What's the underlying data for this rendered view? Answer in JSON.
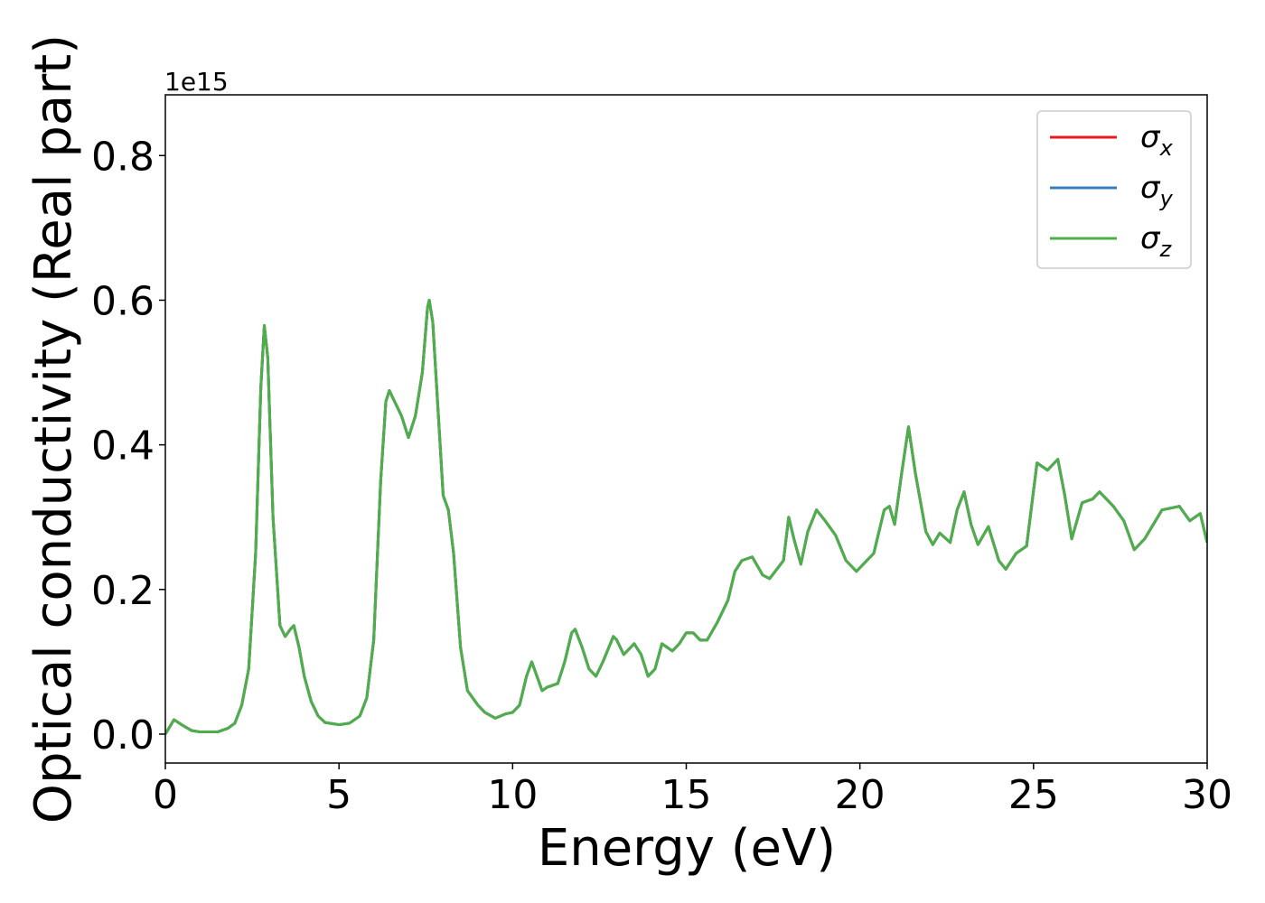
{
  "chart_data": {
    "type": "line",
    "xlabel": "Energy (eV)",
    "ylabel": "Optical conductivity (Real part)",
    "y_offset_label": "1e15",
    "x": [
      0,
      0.25,
      0.5,
      0.75,
      1,
      1.5,
      1.8,
      2.0,
      2.2,
      2.4,
      2.6,
      2.75,
      2.85,
      2.95,
      3.1,
      3.3,
      3.45,
      3.6,
      3.7,
      3.85,
      4.0,
      4.2,
      4.4,
      4.6,
      5.0,
      5.3,
      5.6,
      5.8,
      6.0,
      6.2,
      6.35,
      6.45,
      6.6,
      6.8,
      7.0,
      7.2,
      7.4,
      7.55,
      7.6,
      7.7,
      7.85,
      8.0,
      8.15,
      8.3,
      8.5,
      8.7,
      9.0,
      9.2,
      9.5,
      9.8,
      10.0,
      10.2,
      10.4,
      10.55,
      10.7,
      10.85,
      11.0,
      11.3,
      11.5,
      11.7,
      11.8,
      12.0,
      12.2,
      12.4,
      12.6,
      12.9,
      13.0,
      13.2,
      13.5,
      13.7,
      13.9,
      14.1,
      14.3,
      14.6,
      14.8,
      15.0,
      15.2,
      15.4,
      15.6,
      15.9,
      16.2,
      16.4,
      16.6,
      16.9,
      17.2,
      17.4,
      17.8,
      17.95,
      18.1,
      18.3,
      18.5,
      18.75,
      19.0,
      19.3,
      19.6,
      19.9,
      20.2,
      20.4,
      20.7,
      20.85,
      21.0,
      21.2,
      21.4,
      21.6,
      21.9,
      22.1,
      22.3,
      22.6,
      22.8,
      23.0,
      23.2,
      23.4,
      23.7,
      24.0,
      24.2,
      24.5,
      24.8,
      25.1,
      25.4,
      25.7,
      25.9,
      26.1,
      26.4,
      26.7,
      26.9,
      27.3,
      27.6,
      27.9,
      28.2,
      28.7,
      29.2,
      29.5,
      29.8,
      30.0
    ],
    "series": [
      {
        "name": "σx",
        "color": "#e41a1c",
        "values": [
          0,
          0.02,
          0.012,
          0.005,
          0.003,
          0.003,
          0.008,
          0.015,
          0.04,
          0.09,
          0.25,
          0.48,
          0.565,
          0.52,
          0.3,
          0.15,
          0.135,
          0.145,
          0.15,
          0.12,
          0.08,
          0.045,
          0.025,
          0.016,
          0.013,
          0.015,
          0.025,
          0.05,
          0.13,
          0.35,
          0.46,
          0.475,
          0.46,
          0.44,
          0.41,
          0.44,
          0.5,
          0.59,
          0.6,
          0.57,
          0.45,
          0.33,
          0.31,
          0.25,
          0.12,
          0.06,
          0.04,
          0.03,
          0.022,
          0.028,
          0.03,
          0.04,
          0.08,
          0.1,
          0.08,
          0.06,
          0.065,
          0.07,
          0.1,
          0.14,
          0.145,
          0.12,
          0.09,
          0.08,
          0.1,
          0.135,
          0.13,
          0.11,
          0.125,
          0.11,
          0.08,
          0.09,
          0.125,
          0.115,
          0.125,
          0.14,
          0.14,
          0.13,
          0.13,
          0.155,
          0.185,
          0.225,
          0.24,
          0.245,
          0.22,
          0.215,
          0.24,
          0.3,
          0.27,
          0.235,
          0.28,
          0.31,
          0.295,
          0.275,
          0.24,
          0.225,
          0.24,
          0.25,
          0.31,
          0.315,
          0.29,
          0.36,
          0.425,
          0.36,
          0.28,
          0.262,
          0.278,
          0.265,
          0.31,
          0.335,
          0.29,
          0.262,
          0.287,
          0.24,
          0.228,
          0.25,
          0.26,
          0.375,
          0.365,
          0.38,
          0.33,
          0.27,
          0.32,
          0.325,
          0.335,
          0.315,
          0.295,
          0.255,
          0.27,
          0.31,
          0.315,
          0.295,
          0.305,
          0.265
        ]
      },
      {
        "name": "σy",
        "color": "#377eb8",
        "values": [
          0,
          0.02,
          0.012,
          0.005,
          0.003,
          0.003,
          0.008,
          0.015,
          0.04,
          0.09,
          0.25,
          0.48,
          0.565,
          0.52,
          0.3,
          0.15,
          0.135,
          0.145,
          0.15,
          0.12,
          0.08,
          0.045,
          0.025,
          0.016,
          0.013,
          0.015,
          0.025,
          0.05,
          0.13,
          0.35,
          0.46,
          0.475,
          0.46,
          0.44,
          0.41,
          0.44,
          0.5,
          0.59,
          0.6,
          0.57,
          0.45,
          0.33,
          0.31,
          0.25,
          0.12,
          0.06,
          0.04,
          0.03,
          0.022,
          0.028,
          0.03,
          0.04,
          0.08,
          0.1,
          0.08,
          0.06,
          0.065,
          0.07,
          0.1,
          0.14,
          0.145,
          0.12,
          0.09,
          0.08,
          0.1,
          0.135,
          0.13,
          0.11,
          0.125,
          0.11,
          0.08,
          0.09,
          0.125,
          0.115,
          0.125,
          0.14,
          0.14,
          0.13,
          0.13,
          0.155,
          0.185,
          0.225,
          0.24,
          0.245,
          0.22,
          0.215,
          0.24,
          0.3,
          0.27,
          0.235,
          0.28,
          0.31,
          0.295,
          0.275,
          0.24,
          0.225,
          0.24,
          0.25,
          0.31,
          0.315,
          0.29,
          0.36,
          0.425,
          0.36,
          0.28,
          0.262,
          0.278,
          0.265,
          0.31,
          0.335,
          0.29,
          0.262,
          0.287,
          0.24,
          0.228,
          0.25,
          0.26,
          0.375,
          0.365,
          0.38,
          0.33,
          0.27,
          0.32,
          0.325,
          0.335,
          0.315,
          0.295,
          0.255,
          0.27,
          0.31,
          0.315,
          0.295,
          0.305,
          0.265
        ]
      },
      {
        "name": "σz",
        "color": "#4daf4a",
        "values": [
          0,
          0.02,
          0.012,
          0.005,
          0.003,
          0.003,
          0.008,
          0.015,
          0.04,
          0.09,
          0.25,
          0.48,
          0.565,
          0.52,
          0.3,
          0.15,
          0.135,
          0.145,
          0.15,
          0.12,
          0.08,
          0.045,
          0.025,
          0.016,
          0.013,
          0.015,
          0.025,
          0.05,
          0.13,
          0.35,
          0.46,
          0.475,
          0.46,
          0.44,
          0.41,
          0.44,
          0.5,
          0.59,
          0.6,
          0.57,
          0.45,
          0.33,
          0.31,
          0.25,
          0.12,
          0.06,
          0.04,
          0.03,
          0.022,
          0.028,
          0.03,
          0.04,
          0.08,
          0.1,
          0.08,
          0.06,
          0.065,
          0.07,
          0.1,
          0.14,
          0.145,
          0.12,
          0.09,
          0.08,
          0.1,
          0.135,
          0.13,
          0.11,
          0.125,
          0.11,
          0.08,
          0.09,
          0.125,
          0.115,
          0.125,
          0.14,
          0.14,
          0.13,
          0.13,
          0.155,
          0.185,
          0.225,
          0.24,
          0.245,
          0.22,
          0.215,
          0.24,
          0.3,
          0.27,
          0.235,
          0.28,
          0.31,
          0.295,
          0.275,
          0.24,
          0.225,
          0.24,
          0.25,
          0.31,
          0.315,
          0.29,
          0.36,
          0.425,
          0.36,
          0.28,
          0.262,
          0.278,
          0.265,
          0.31,
          0.335,
          0.29,
          0.262,
          0.287,
          0.24,
          0.228,
          0.25,
          0.26,
          0.375,
          0.365,
          0.38,
          0.33,
          0.27,
          0.32,
          0.325,
          0.335,
          0.315,
          0.295,
          0.255,
          0.27,
          0.31,
          0.315,
          0.295,
          0.305,
          0.265
        ]
      }
    ],
    "xlim": [
      0,
      30
    ],
    "xticks": [
      0,
      5,
      10,
      15,
      20,
      25,
      30
    ],
    "ylim": [
      -0.04,
      0.884
    ],
    "yticks": [
      {
        "value": 0,
        "label": "0.0"
      },
      0.2,
      0.4,
      0.6,
      0.8
    ],
    "grid": false,
    "legend": "upper right"
  }
}
